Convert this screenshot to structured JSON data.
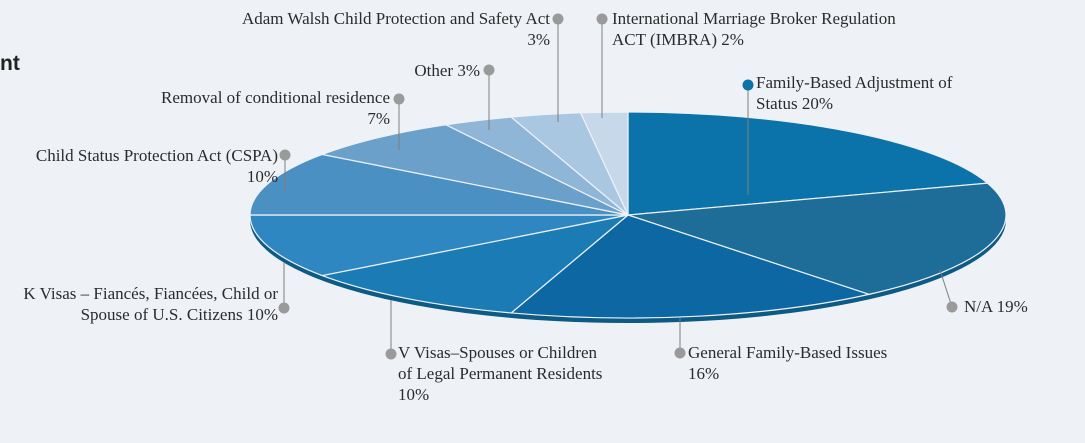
{
  "chart_data": {
    "type": "pie",
    "title": "nt",
    "categories": [
      "Family-Based Adjustment of Status",
      "N/A",
      "General Family-Based Issues",
      "V Visas–Spouses or Children of Legal Permanent Residents",
      "K Visas – Fiancés, Fiancées, Child or Spouse of U.S. Citizens",
      "Child Status Protection Act (CSPA)",
      "Removal of conditional residence",
      "Other",
      "Adam Walsh Child Protection and Safety Act",
      "International Marriage Broker Regulation ACT (IMBRA)"
    ],
    "values": [
      20,
      19,
      16,
      10,
      10,
      10,
      7,
      3,
      3,
      2
    ],
    "value_labels": [
      "20%",
      "19%",
      "16%",
      "10%",
      "10%",
      "10%",
      "7%",
      "3%",
      "3%",
      "2%"
    ],
    "colors": [
      "#0b73a9",
      "#1d6d98",
      "#0c67a2",
      "#1b7cb5",
      "#2f87c1",
      "#4b90c2",
      "#6ba0ca",
      "#8fb6d7",
      "#aac7e1",
      "#c6d8e9"
    ]
  }
}
